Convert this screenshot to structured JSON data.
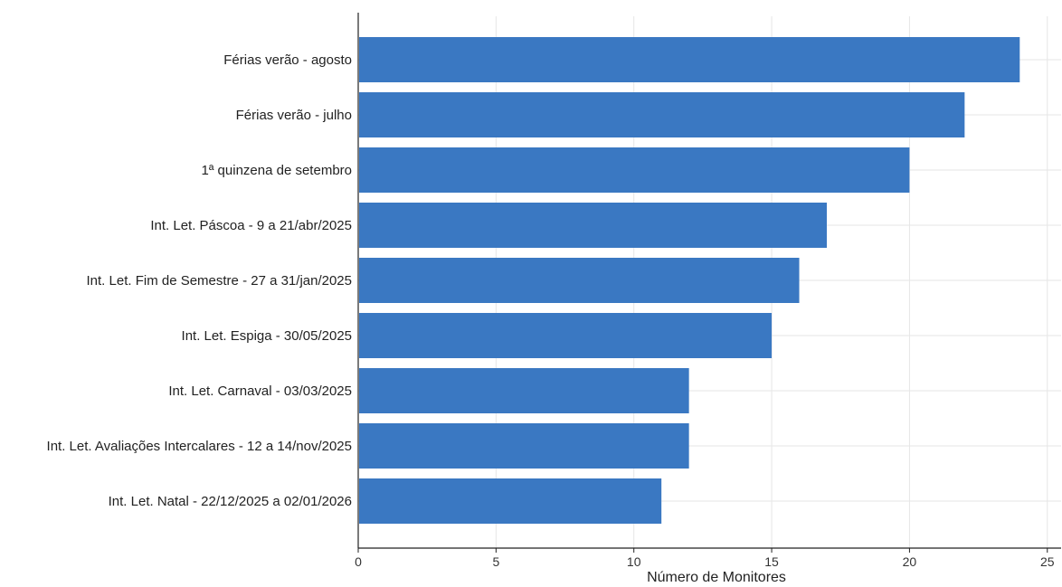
{
  "chart_data": {
    "type": "bar",
    "orientation": "horizontal",
    "title": "",
    "xlabel": "Número de Monitores",
    "ylabel": "",
    "categories": [
      "Férias verão - agosto",
      "Férias verão - julho",
      "1ª quinzena de setembro",
      "Int. Let. Páscoa - 9 a 21/abr/2025",
      "Int. Let. Fim de Semestre - 27 a 31/jan/2025",
      "Int. Let. Espiga - 30/05/2025",
      "Int. Let. Carnaval - 03/03/2025",
      "Int. Let. Avaliações Intercalares - 12 a 14/nov/2025",
      "Int. Let. Natal - 22/12/2025 a 02/01/2026"
    ],
    "values": [
      24,
      22,
      20,
      17,
      16,
      15,
      12,
      12,
      11
    ],
    "xlim": [
      0,
      25.5
    ],
    "xticks": [
      0,
      5,
      10,
      15,
      20,
      25
    ],
    "grid": true,
    "bar_color": "#3a78c2"
  }
}
